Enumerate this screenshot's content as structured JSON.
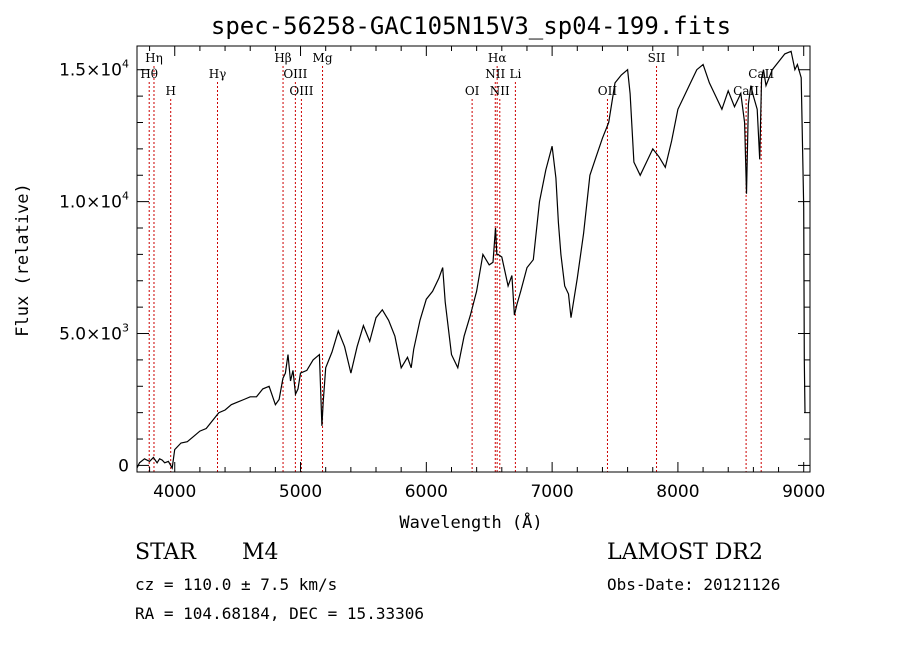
{
  "chart_data": {
    "type": "line",
    "title": "spec-56258-GAC105N15V3_sp04-199.fits",
    "xlabel": "Wavelength (Å)",
    "ylabel": "Flux (relative)",
    "xlim": [
      3700,
      9050
    ],
    "ylim": [
      -250,
      15900
    ],
    "x_ticks": [
      4000,
      5000,
      6000,
      7000,
      8000,
      9000
    ],
    "x_tick_labels": [
      "4000",
      "5000",
      "6000",
      "7000",
      "8000",
      "9000"
    ],
    "y_ticks": [
      0,
      5000,
      10000,
      15000
    ],
    "y_tick_labels": [
      {
        "mant": "0",
        "exp": ""
      },
      {
        "mant": "5.0×10",
        "exp": "3"
      },
      {
        "mant": "1.0×10",
        "exp": "4"
      },
      {
        "mant": "1.5×10",
        "exp": "4"
      }
    ],
    "grid": false,
    "series": [
      {
        "color": "#000000",
        "x": [
          3700,
          3720,
          3760,
          3800,
          3830,
          3860,
          3880,
          3900,
          3920,
          3950,
          3980,
          4000,
          4050,
          4100,
          4150,
          4200,
          4250,
          4300,
          4350,
          4400,
          4450,
          4500,
          4550,
          4600,
          4650,
          4700,
          4750,
          4800,
          4830,
          4860,
          4880,
          4900,
          4920,
          4940,
          4960,
          4980,
          5000,
          5050,
          5100,
          5150,
          5170,
          5180,
          5200,
          5250,
          5300,
          5350,
          5400,
          5450,
          5500,
          5550,
          5600,
          5650,
          5700,
          5750,
          5800,
          5850,
          5880,
          5900,
          5950,
          6000,
          6050,
          6100,
          6130,
          6150,
          6200,
          6250,
          6300,
          6350,
          6400,
          6450,
          6500,
          6530,
          6550,
          6560,
          6570,
          6600,
          6650,
          6680,
          6700,
          6720,
          6750,
          6800,
          6850,
          6900,
          6950,
          7000,
          7030,
          7050,
          7070,
          7100,
          7130,
          7150,
          7200,
          7250,
          7300,
          7350,
          7400,
          7450,
          7500,
          7550,
          7600,
          7620,
          7650,
          7700,
          7750,
          7800,
          7850,
          7900,
          7950,
          8000,
          8050,
          8100,
          8150,
          8200,
          8250,
          8300,
          8350,
          8400,
          8450,
          8500,
          8530,
          8545,
          8560,
          8580,
          8600,
          8630,
          8650,
          8665,
          8680,
          8700,
          8750,
          8800,
          8850,
          8900,
          8930,
          8950,
          8980,
          9000,
          9005,
          9010
        ],
        "y": [
          -100,
          100,
          250,
          150,
          300,
          100,
          250,
          200,
          100,
          150,
          -100,
          600,
          850,
          900,
          1100,
          1300,
          1400,
          1700,
          2000,
          2100,
          2300,
          2400,
          2500,
          2600,
          2600,
          2900,
          3000,
          2300,
          2500,
          3300,
          3500,
          4200,
          3200,
          3600,
          2700,
          2900,
          3500,
          3600,
          4000,
          4200,
          1500,
          2400,
          3700,
          4300,
          5100,
          4500,
          3500,
          4500,
          5300,
          4700,
          5600,
          5900,
          5500,
          4900,
          3700,
          4100,
          3700,
          4400,
          5500,
          6300,
          6600,
          7100,
          7500,
          6200,
          4200,
          3700,
          4900,
          5700,
          6600,
          8000,
          7600,
          7700,
          9000,
          8000,
          8000,
          7900,
          6800,
          7200,
          5700,
          6100,
          6600,
          7500,
          7800,
          10000,
          11200,
          12100,
          10900,
          9200,
          8000,
          6800,
          6500,
          5600,
          7100,
          8800,
          11000,
          11700,
          12400,
          13000,
          14500,
          14800,
          15000,
          14100,
          11500,
          11000,
          11500,
          12000,
          11700,
          11300,
          12300,
          13500,
          14000,
          14500,
          15000,
          15200,
          14500,
          14000,
          13500,
          14200,
          13600,
          14100,
          13000,
          10300,
          13700,
          14400,
          14000,
          13500,
          11600,
          14700,
          15000,
          14400,
          15000,
          15300,
          15600,
          15700,
          15000,
          15200,
          14700,
          9800,
          4000,
          2000
        ]
      }
    ],
    "line_markers": [
      {
        "label": "Hη",
        "x": 3835,
        "tier": 0,
        "color": "#cc0000"
      },
      {
        "label": "Hθ",
        "x": 3797,
        "tier": 1,
        "color": "#cc0000"
      },
      {
        "label": "H",
        "x": 3968,
        "tier": 2,
        "color": "#cc0000"
      },
      {
        "label": "Hγ",
        "x": 4340,
        "tier": 1,
        "color": "#cc0000"
      },
      {
        "label": "Hβ",
        "x": 4861,
        "tier": 0,
        "color": "#cc0000"
      },
      {
        "label": "OIII",
        "x": 4959,
        "tier": 1,
        "color": "#cc0000"
      },
      {
        "label": "OIII",
        "x": 5007,
        "tier": 2,
        "color": "#cc0000"
      },
      {
        "label": "Mg",
        "x": 5175,
        "tier": 0,
        "color": "#cc0000"
      },
      {
        "label": "OI",
        "x": 6364,
        "tier": 2,
        "color": "#cc0000"
      },
      {
        "label": "Hα",
        "x": 6563,
        "tier": 0,
        "color": "#cc0000"
      },
      {
        "label": "NII",
        "x": 6548,
        "tier": 1,
        "color": "#cc0000"
      },
      {
        "label": "NII",
        "x": 6584,
        "tier": 2,
        "color": "#cc0000"
      },
      {
        "label": "Li",
        "x": 6708,
        "tier": 1,
        "color": "#cc0000"
      },
      {
        "label": "OII",
        "x": 7440,
        "tier": 2,
        "color": "#cc0000"
      },
      {
        "label": "SII",
        "x": 7830,
        "tier": 0,
        "color": "#cc0000"
      },
      {
        "label": "CaII",
        "x": 8542,
        "tier": 2,
        "color": "#cc0000"
      },
      {
        "label": "CaII",
        "x": 8662,
        "tier": 1,
        "color": "#cc0000"
      }
    ]
  },
  "info": {
    "object_class": "STAR",
    "subclass": "M4",
    "survey": "LAMOST DR2",
    "cz": "cz = 110.0 ± 7.5 km/s",
    "obs_date": "Obs-Date: 20121126",
    "coords": "RA = 104.68184, DEC =  15.33306"
  }
}
